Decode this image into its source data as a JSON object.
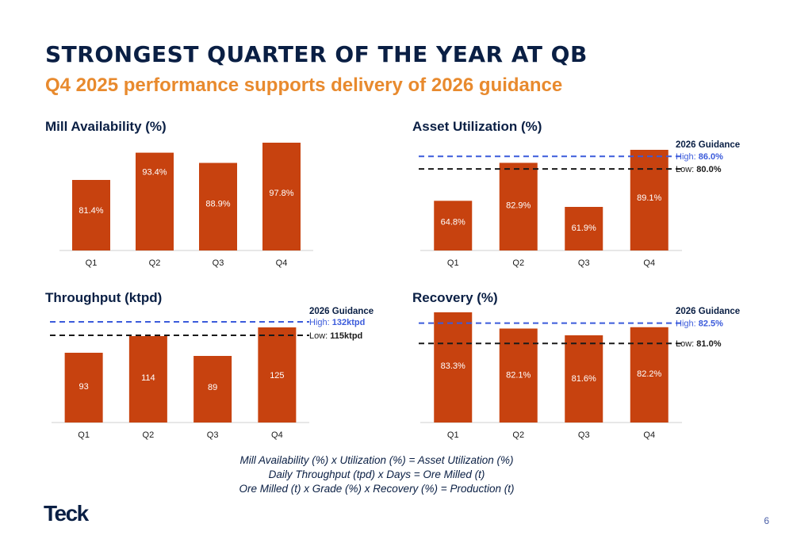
{
  "title": "STRONGEST QUARTER OF THE YEAR AT QB",
  "subtitle": "Q4 2025 performance supports delivery of 2026 guidance",
  "colors": {
    "bar": "#c7420f",
    "high_line": "#3b5bdb",
    "low_line": "#1a1a1a",
    "title": "#0a1f44",
    "subtitle": "#e88a2e"
  },
  "chart_data": [
    {
      "type": "bar",
      "title": "Mill Availability (%)",
      "categories": [
        "Q1",
        "Q2",
        "Q3",
        "Q4"
      ],
      "values": [
        81.4,
        93.4,
        88.9,
        97.8
      ],
      "labels": [
        "81.4%",
        "93.4%",
        "88.9%",
        "97.8%"
      ],
      "guidance": null
    },
    {
      "type": "bar",
      "title": "Asset Utilization (%)",
      "categories": [
        "Q1",
        "Q2",
        "Q3",
        "Q4"
      ],
      "values": [
        64.8,
        82.9,
        61.9,
        89.1
      ],
      "labels": [
        "64.8%",
        "82.9%",
        "61.9%",
        "89.1%"
      ],
      "guidance": {
        "heading": "2026 Guidance",
        "high_label": "High:",
        "high_value": "86.0%",
        "high": 86.0,
        "low_label": "Low:",
        "low_value": "80.0%",
        "low": 80.0
      }
    },
    {
      "type": "bar",
      "title": "Throughput (ktpd)",
      "categories": [
        "Q1",
        "Q2",
        "Q3",
        "Q4"
      ],
      "values": [
        93,
        114,
        89,
        125
      ],
      "labels": [
        "93",
        "114",
        "89",
        "125"
      ],
      "guidance": {
        "heading": "2026 Guidance",
        "high_label": "High:",
        "high_value": "132ktpd",
        "high": 132,
        "low_label": "Low:",
        "low_value": "115ktpd",
        "low": 115
      }
    },
    {
      "type": "bar",
      "title": "Recovery (%)",
      "categories": [
        "Q1",
        "Q2",
        "Q3",
        "Q4"
      ],
      "values": [
        83.3,
        82.1,
        81.6,
        82.2
      ],
      "labels": [
        "83.3%",
        "82.1%",
        "81.6%",
        "82.2%"
      ],
      "guidance": {
        "heading": "2026 Guidance",
        "high_label": "High:",
        "high_value": "82.5%",
        "high": 82.5,
        "low_label": "Low:",
        "low_value": "81.0%",
        "low": 81.0
      }
    }
  ],
  "formulas": [
    "Mill Availability (%) x Utilization (%) = Asset Utilization (%)",
    "Daily Throughput (tpd) x Days = Ore Milled (t)",
    "Ore Milled (t) x Grade (%) x Recovery (%) = Production (t)"
  ],
  "logo": "Teck",
  "page_number": "6"
}
